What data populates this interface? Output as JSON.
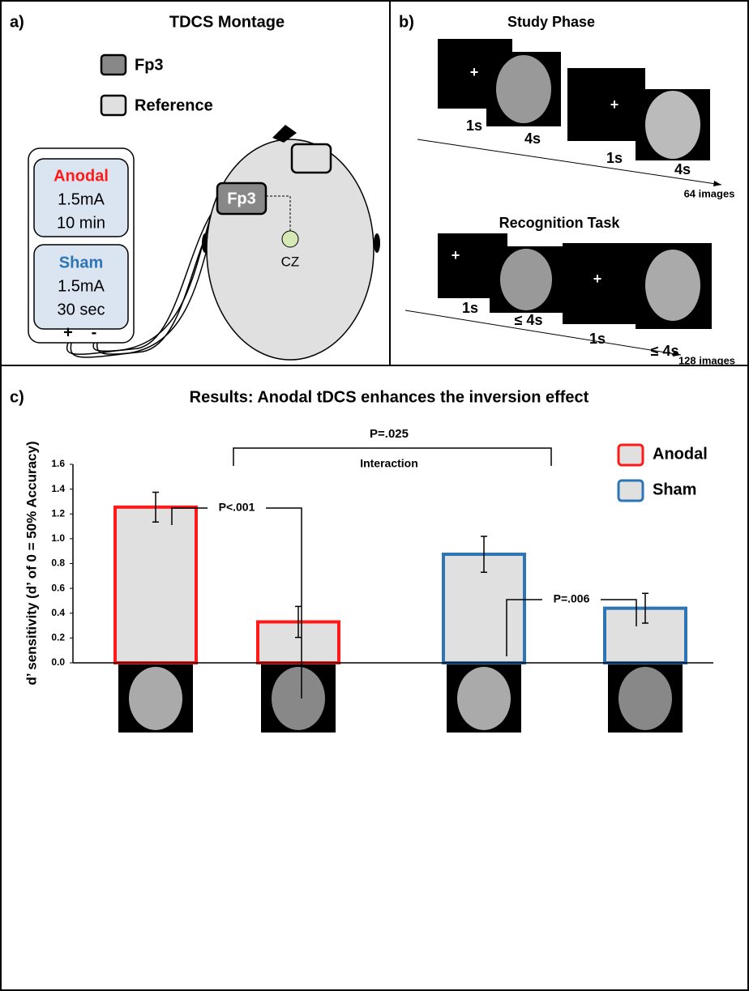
{
  "panel_a": {
    "label": "a)",
    "title": "TDCS Montage",
    "legend": [
      "Fp3",
      "Reference"
    ],
    "anodal": {
      "name": "Anodal",
      "current": "1.5mA",
      "duration": "10 min"
    },
    "sham": {
      "name": "Sham",
      "current": "1.5mA",
      "duration": "30 sec"
    },
    "polarity": [
      "+",
      "-"
    ],
    "electrode": "Fp3",
    "cz": "CZ"
  },
  "panel_b": {
    "label": "b)",
    "study": {
      "title": "Study Phase",
      "durations": [
        "1s",
        "4s",
        "1s",
        "4s"
      ],
      "count": "64 images"
    },
    "recognition": {
      "title": "Recognition Task",
      "durations": [
        "1s",
        "≤ 4s",
        "1s",
        "≤ 4s"
      ],
      "count": "128 images"
    }
  },
  "chart_data": {
    "type": "bar",
    "panel_label": "c)",
    "title": "Results: Anodal tDCS enhances the inversion effect",
    "ylabel": "d’ sensitivity (d’ of 0 = 50% Accuracy)",
    "categories": [
      null,
      null,
      null,
      null
    ],
    "series": [
      {
        "name": "Anodal",
        "color": "#ff1a1a",
        "values": [
          1.255,
          0.33,
          null,
          null
        ],
        "errors": [
          0.12,
          0.125,
          null,
          null
        ]
      },
      {
        "name": "Sham",
        "color": "#2e75b6",
        "values": [
          null,
          null,
          0.875,
          0.44
        ],
        "errors": [
          null,
          null,
          0.145,
          0.12
        ]
      }
    ],
    "ylim": [
      0,
      1.6
    ],
    "yticks": [
      {
        "value": 0,
        "label": "0.0"
      },
      {
        "value": 0.2,
        "label": "0.2"
      },
      {
        "value": 0.4,
        "label": "0.4"
      },
      {
        "value": 0.6,
        "label": "0.6"
      },
      {
        "value": 0.8,
        "label": "0.8"
      },
      {
        "value": 1,
        "label": "1.0"
      },
      {
        "value": 1.2,
        "label": "1.2"
      },
      {
        "value": 1.4,
        "label": "1.4"
      },
      {
        "value": 1.6,
        "label": "1.6"
      }
    ],
    "annotations": [
      {
        "text": "P<.001"
      },
      {
        "text": "P=.006"
      },
      {
        "text": "P=.025"
      },
      {
        "text": "Interaction"
      }
    ],
    "legend_position": "upper right",
    "bar_fill": "#e0e0e0"
  }
}
